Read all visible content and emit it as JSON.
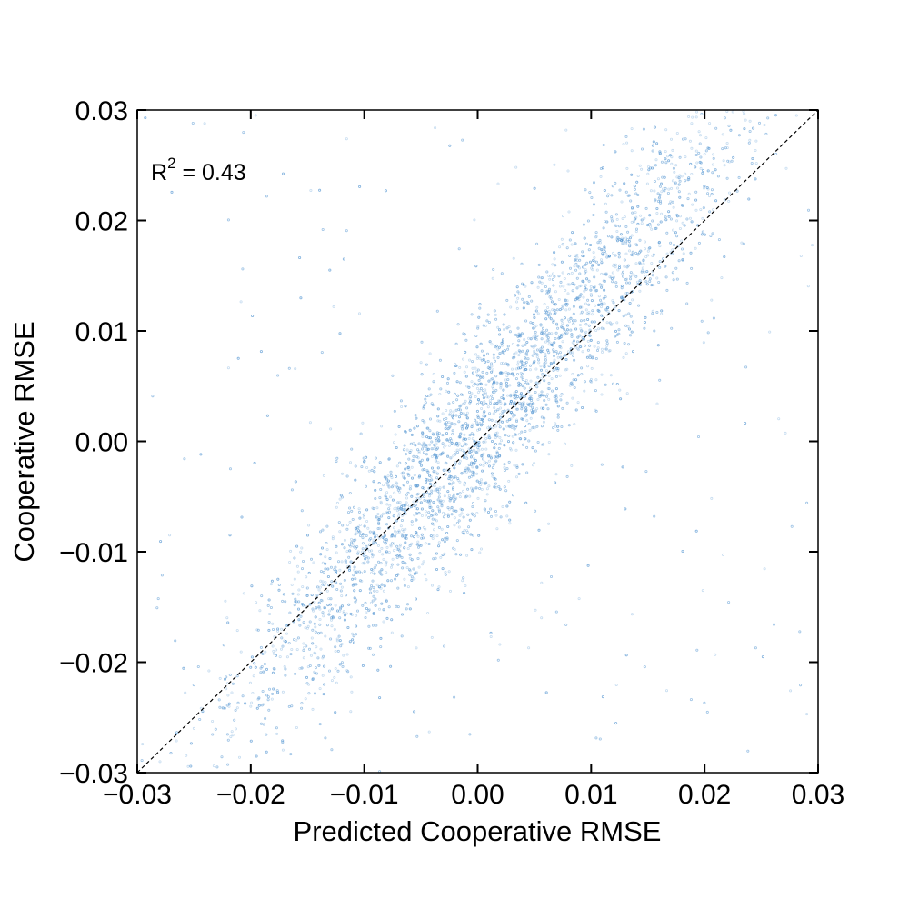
{
  "chart_data": {
    "type": "scatter",
    "title": "",
    "xlabel": "Predicted Cooperative RMSE",
    "ylabel": "Cooperative RMSE",
    "xlim": [
      -0.03,
      0.03
    ],
    "ylim": [
      -0.03,
      0.03
    ],
    "xticks": [
      -0.03,
      -0.02,
      -0.01,
      0.0,
      0.01,
      0.02,
      0.03
    ],
    "yticks": [
      -0.03,
      -0.02,
      -0.01,
      0.0,
      0.01,
      0.02,
      0.03
    ],
    "xtick_labels": [
      "−0.03",
      "−0.02",
      "−0.01",
      "0.00",
      "0.01",
      "0.02",
      "0.03"
    ],
    "ytick_labels": [
      "−0.03",
      "−0.02",
      "−0.01",
      "0.00",
      "0.01",
      "0.02",
      "0.03"
    ],
    "grid": false,
    "marker_color": "#5b9bd5",
    "reference_line": {
      "type": "identity",
      "style": "dashed",
      "color": "#000000"
    },
    "annotation": {
      "r2_base": "R",
      "r2_sup": "2",
      "r2_value": " = 0.43"
    },
    "point_cloud": {
      "approx_count": 6000,
      "trend_slope": 1.15,
      "trend_intercept": 0.001,
      "residual_sd": 0.0045,
      "x_mean": 0.001,
      "x_sd": 0.011
    },
    "sample_points": [
      [
        -0.028,
        -0.029
      ],
      [
        -0.025,
        -0.026
      ],
      [
        -0.022,
        -0.023
      ],
      [
        -0.02,
        -0.024
      ],
      [
        -0.018,
        -0.019
      ],
      [
        -0.016,
        -0.018
      ],
      [
        -0.014,
        -0.015
      ],
      [
        -0.012,
        -0.014
      ],
      [
        -0.01,
        -0.011
      ],
      [
        -0.008,
        -0.009
      ],
      [
        -0.006,
        -0.006
      ],
      [
        -0.004,
        -0.004
      ],
      [
        -0.002,
        -0.001
      ],
      [
        0.0,
        0.001
      ],
      [
        0.002,
        0.003
      ],
      [
        0.004,
        0.005
      ],
      [
        0.005,
        0.008
      ],
      [
        0.006,
        0.009
      ],
      [
        0.008,
        0.011
      ],
      [
        0.01,
        0.014
      ],
      [
        0.012,
        0.016
      ],
      [
        0.014,
        0.019
      ],
      [
        0.016,
        0.022
      ],
      [
        0.018,
        0.024
      ],
      [
        0.02,
        0.026
      ],
      [
        0.022,
        0.027
      ],
      [
        0.024,
        0.029
      ]
    ]
  }
}
